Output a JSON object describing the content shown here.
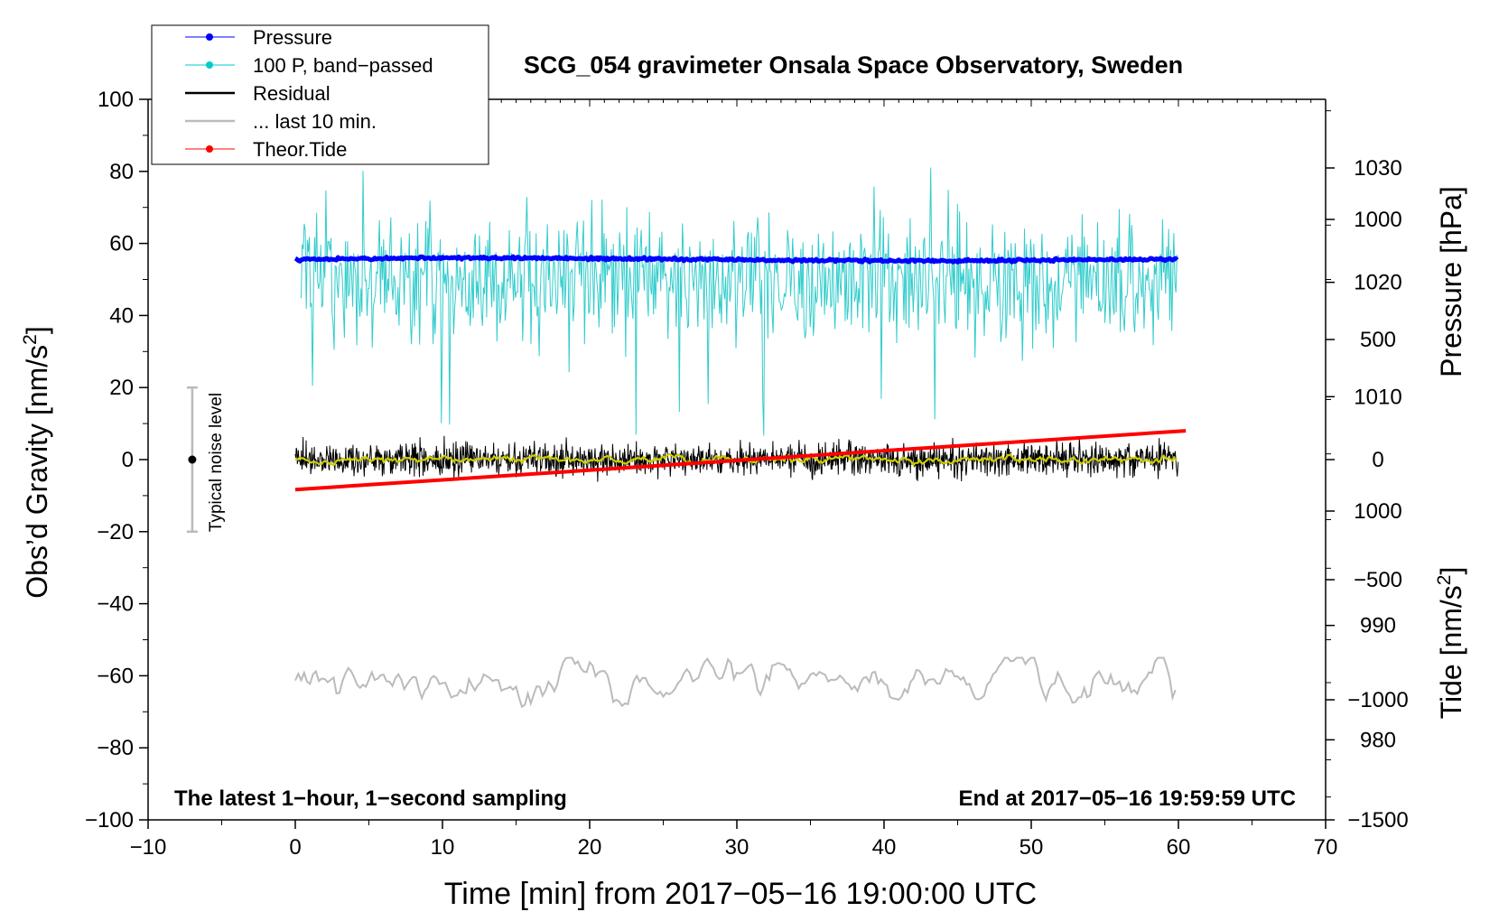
{
  "chart_data": {
    "type": "line",
    "title": "SCG_054 gravimeter Onsala Space Observatory, Sweden",
    "xlabel": "Time [min] from 2017−05−16 19:00:00 UTC",
    "ylabel_left_main": "Obs’d Gravity [nm/s",
    "ylabel_left_sup": "2",
    "ylabel_left_end": "]",
    "ylabel_pressure": "Pressure [hPa]",
    "ylabel_tide_main": "Tide [nm/s",
    "ylabel_tide_sup": "2",
    "ylabel_tide_end": "]",
    "xlim": [
      -10,
      70
    ],
    "ylim": [
      -100,
      100
    ],
    "pressure_lim": [
      973,
      1036
    ],
    "tide_lim": [
      -1500,
      1500
    ],
    "x_ticks": [
      "−10",
      "0",
      "10",
      "20",
      "30",
      "40",
      "50",
      "60",
      "70"
    ],
    "y_ticks": [
      "100",
      "80",
      "60",
      "40",
      "20",
      "0",
      "−20",
      "−40",
      "−60",
      "−80",
      "−100"
    ],
    "pressure_ticks": [
      "1030",
      "1020",
      "1010",
      "1000",
      "990",
      "980"
    ],
    "tide_ticks": [
      "1000",
      "500",
      "0",
      "−500",
      "−1000",
      "−1500"
    ],
    "annotation_left": "The latest 1−hour, 1−second sampling",
    "annotation_right": "End at 2017−05−16 19:59:59 UTC",
    "noise_label": "Typical noise level",
    "noise_bar": {
      "x": -7,
      "center": 0,
      "half_range": 20
    },
    "legend_position": "top-left",
    "legend": [
      {
        "label": "Pressure",
        "color": "#0000ff",
        "marker": true
      },
      {
        "label": "100 P, band−passed",
        "color": "#00cccc",
        "marker": true
      },
      {
        "label": "Residual",
        "color": "#000000",
        "marker": false
      },
      {
        "label": "... last 10 min.",
        "color": "#bbbbbb",
        "marker": false
      },
      {
        "label": "Theor.Tide",
        "color": "#ff0000",
        "marker": true
      }
    ],
    "series": [
      {
        "name": "Pressure",
        "axis": "pressure",
        "color": "#0000ff",
        "x_range": [
          0,
          60
        ],
        "approx_level": 1022,
        "approx_spread": 0.5
      },
      {
        "name": "100 P, band−passed",
        "axis": "left",
        "color": "#33cccc",
        "x_range": [
          0,
          60
        ],
        "approx_level": 50,
        "approx_min": 5,
        "approx_max": 82
      },
      {
        "name": "Residual",
        "axis": "left",
        "color": "#000000",
        "x_range": [
          0,
          60
        ],
        "approx_level": 0,
        "approx_min": -8,
        "approx_max": 7
      },
      {
        "name": "",
        "axis": "left",
        "color": "#cccc00",
        "x_range": [
          0,
          60
        ],
        "approx_level": 0,
        "approx_spread": 1
      },
      {
        "name": "... last 10 min.",
        "axis": "left",
        "color": "#bbbbbb",
        "x_range": [
          0,
          60
        ],
        "approx_level": -62,
        "approx_min": -70,
        "approx_max": -55
      },
      {
        "name": "Theor.Tide",
        "axis": "tide",
        "color": "#ff0000",
        "x": [
          0,
          60.5
        ],
        "y": [
          -125,
          120
        ]
      }
    ]
  }
}
